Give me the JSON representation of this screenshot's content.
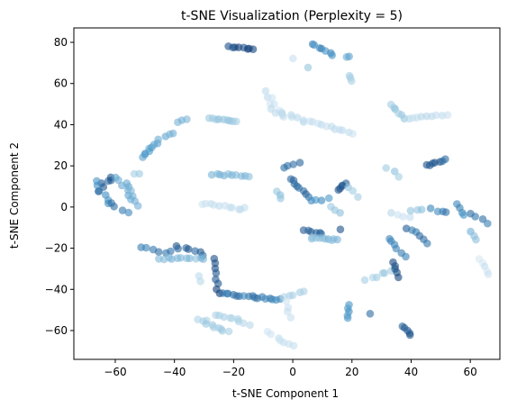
{
  "chart_data": {
    "type": "scatter",
    "title": "t-SNE Visualization (Perplexity = 5)",
    "xlabel": "t-SNE Component 1",
    "ylabel": "t-SNE Component 2",
    "xlim": [
      -74,
      70
    ],
    "ylim": [
      -74,
      87
    ],
    "xticks": [
      -60,
      -40,
      -20,
      0,
      20,
      40,
      60
    ],
    "yticks": [
      -60,
      -40,
      -20,
      0,
      20,
      40,
      60,
      80
    ],
    "grid": false,
    "legend": "none",
    "colormap": [
      "#deebf7",
      "#9ecae1",
      "#4292c6",
      "#08306b"
    ],
    "marker_alpha": 0.6,
    "clusters": [
      {
        "x0": -66,
        "y0": 8,
        "x1": -61,
        "y1": 15,
        "n": 6,
        "shade": 0.85,
        "spread": 2
      },
      {
        "x0": -67,
        "y0": 12,
        "x1": -62,
        "y1": 2,
        "n": 6,
        "shade": 0.7,
        "spread": 2
      },
      {
        "x0": -62,
        "y0": 2,
        "x1": -56,
        "y1": -3,
        "n": 4,
        "shade": 0.75,
        "spread": 1.5
      },
      {
        "x0": -60,
        "y0": 15,
        "x1": -54,
        "y1": 4,
        "n": 6,
        "shade": 0.55,
        "spread": 1.5
      },
      {
        "x0": -56,
        "y0": 12,
        "x1": -53,
        "y1": 1,
        "n": 6,
        "shade": 0.5,
        "spread": 1.5
      },
      {
        "x0": -54,
        "y0": 16,
        "x1": -52,
        "y1": 16,
        "n": 2,
        "shade": 0.35,
        "spread": 1
      },
      {
        "x0": -51,
        "y0": 24,
        "x1": -46,
        "y1": 31,
        "n": 8,
        "shade": 0.6,
        "spread": 1
      },
      {
        "x0": -45,
        "y0": 33,
        "x1": -40,
        "y1": 36,
        "n": 4,
        "shade": 0.5,
        "spread": 1
      },
      {
        "x0": -39,
        "y0": 41,
        "x1": -36,
        "y1": 43,
        "n": 3,
        "shade": 0.45,
        "spread": 1
      },
      {
        "x0": -28,
        "y0": 43,
        "x1": -19,
        "y1": 42,
        "n": 9,
        "shade": 0.35,
        "spread": 1
      },
      {
        "x0": -27,
        "y0": 16,
        "x1": -15,
        "y1": 15,
        "n": 10,
        "shade": 0.45,
        "spread": 1
      },
      {
        "x0": -31,
        "y0": 2,
        "x1": -16,
        "y1": -1,
        "n": 11,
        "shade": 0.12,
        "spread": 1.5
      },
      {
        "x0": -52,
        "y0": -20,
        "x1": -41,
        "y1": -22,
        "n": 6,
        "shade": 0.75,
        "spread": 1.5
      },
      {
        "x0": -40,
        "y0": -19,
        "x1": -30,
        "y1": -23,
        "n": 7,
        "shade": 0.85,
        "spread": 1.5
      },
      {
        "x0": -45,
        "y0": -25,
        "x1": -30,
        "y1": -25,
        "n": 11,
        "shade": 0.45,
        "spread": 1
      },
      {
        "x0": -27,
        "y0": -25,
        "x1": -25,
        "y1": -42,
        "n": 8,
        "shade": 0.9,
        "spread": 1
      },
      {
        "x0": -24,
        "y0": -42,
        "x1": -4,
        "y1": -45,
        "n": 17,
        "shade": 0.75,
        "spread": 1
      },
      {
        "x0": -3,
        "y0": -44,
        "x1": 4,
        "y1": -41,
        "n": 5,
        "shade": 0.3,
        "spread": 1
      },
      {
        "x0": -32,
        "y0": -33,
        "x1": -31,
        "y1": -36,
        "n": 2,
        "shade": 0.2,
        "spread": 1
      },
      {
        "x0": -32,
        "y0": -54,
        "x1": -22,
        "y1": -61,
        "n": 10,
        "shade": 0.3,
        "spread": 1.5
      },
      {
        "x0": -26,
        "y0": -52,
        "x1": -15,
        "y1": -57,
        "n": 9,
        "shade": 0.25,
        "spread": 1.5
      },
      {
        "x0": -8,
        "y0": -61,
        "x1": 0,
        "y1": -68,
        "n": 7,
        "shade": 0.1,
        "spread": 1.5
      },
      {
        "x0": -2,
        "y0": -46,
        "x1": -1,
        "y1": -54,
        "n": 4,
        "shade": 0.12,
        "spread": 1
      },
      {
        "x0": -22,
        "y0": 78,
        "x1": -13,
        "y1": 77,
        "n": 8,
        "shade": 0.95,
        "spread": 1
      },
      {
        "x0": 6,
        "y0": 79,
        "x1": 14,
        "y1": 74,
        "n": 7,
        "shade": 0.7,
        "spread": 1.5
      },
      {
        "x0": 18,
        "y0": 73,
        "x1": 19,
        "y1": 73,
        "n": 2,
        "shade": 0.55,
        "spread": 0.5
      },
      {
        "x0": 0,
        "y0": 72,
        "x1": 0,
        "y1": 72,
        "n": 1,
        "shade": 0.15,
        "spread": 0.5
      },
      {
        "x0": 5,
        "y0": 68,
        "x1": 5,
        "y1": 68,
        "n": 1,
        "shade": 0.35,
        "spread": 0.5
      },
      {
        "x0": 19,
        "y0": 64,
        "x1": 20,
        "y1": 61,
        "n": 3,
        "shade": 0.3,
        "spread": 0.5
      },
      {
        "x0": -10,
        "y0": 56,
        "x1": -3,
        "y1": 44,
        "n": 8,
        "shade": 0.12,
        "spread": 2
      },
      {
        "x0": -7,
        "y0": 47,
        "x1": 3,
        "y1": 42,
        "n": 8,
        "shade": 0.15,
        "spread": 1.5
      },
      {
        "x0": 4,
        "y0": 42,
        "x1": 20,
        "y1": 36,
        "n": 12,
        "shade": 0.12,
        "spread": 1
      },
      {
        "x0": -3,
        "y0": 19,
        "x1": 2,
        "y1": 22,
        "n": 4,
        "shade": 0.8,
        "spread": 1
      },
      {
        "x0": -1,
        "y0": 14,
        "x1": 5,
        "y1": 5,
        "n": 8,
        "shade": 0.8,
        "spread": 1
      },
      {
        "x0": -5,
        "y0": 8,
        "x1": -4,
        "y1": 4,
        "n": 3,
        "shade": 0.4,
        "spread": 1
      },
      {
        "x0": 6,
        "y0": 3,
        "x1": 12,
        "y1": 4,
        "n": 4,
        "shade": 0.65,
        "spread": 1
      },
      {
        "x0": 15,
        "y0": 8,
        "x1": 18,
        "y1": 12,
        "n": 5,
        "shade": 0.85,
        "spread": 1
      },
      {
        "x0": 19,
        "y0": 10,
        "x1": 22,
        "y1": 5,
        "n": 3,
        "shade": 0.35,
        "spread": 1
      },
      {
        "x0": 13,
        "y0": 0,
        "x1": 16,
        "y1": -3,
        "n": 3,
        "shade": 0.4,
        "spread": 1
      },
      {
        "x0": 4,
        "y0": -11,
        "x1": 10,
        "y1": -13,
        "n": 6,
        "shade": 0.85,
        "spread": 1
      },
      {
        "x0": 6,
        "y0": -15,
        "x1": 15,
        "y1": -16,
        "n": 10,
        "shade": 0.45,
        "spread": 1
      },
      {
        "x0": 16,
        "y0": -11,
        "x1": 16,
        "y1": -11,
        "n": 1,
        "shade": 0.85,
        "spread": 0.5
      },
      {
        "x0": 19,
        "y0": -47,
        "x1": 19,
        "y1": -54,
        "n": 5,
        "shade": 0.65,
        "spread": 1
      },
      {
        "x0": 26,
        "y0": -52,
        "x1": 26,
        "y1": -52,
        "n": 1,
        "shade": 0.8,
        "spread": 0.5
      },
      {
        "x0": 33,
        "y0": 50,
        "x1": 38,
        "y1": 43,
        "n": 6,
        "shade": 0.35,
        "spread": 1
      },
      {
        "x0": 39,
        "y0": 43,
        "x1": 52,
        "y1": 45,
        "n": 9,
        "shade": 0.15,
        "spread": 1
      },
      {
        "x0": 32,
        "y0": 19,
        "x1": 36,
        "y1": 15,
        "n": 3,
        "shade": 0.35,
        "spread": 1
      },
      {
        "x0": 45,
        "y0": 20,
        "x1": 52,
        "y1": 23,
        "n": 7,
        "shade": 0.85,
        "spread": 1
      },
      {
        "x0": 33,
        "y0": -3,
        "x1": 40,
        "y1": -5,
        "n": 4,
        "shade": 0.15,
        "spread": 1
      },
      {
        "x0": 40,
        "y0": -2,
        "x1": 44,
        "y1": -1,
        "n": 3,
        "shade": 0.4,
        "spread": 1
      },
      {
        "x0": 47,
        "y0": -1,
        "x1": 52,
        "y1": -3,
        "n": 4,
        "shade": 0.75,
        "spread": 1
      },
      {
        "x0": 55,
        "y0": 1,
        "x1": 58,
        "y1": -4,
        "n": 4,
        "shade": 0.7,
        "spread": 1
      },
      {
        "x0": 60,
        "y0": -3,
        "x1": 66,
        "y1": -8,
        "n": 4,
        "shade": 0.75,
        "spread": 1
      },
      {
        "x0": 60,
        "y0": -12,
        "x1": 62,
        "y1": -16,
        "n": 3,
        "shade": 0.45,
        "spread": 1
      },
      {
        "x0": 38,
        "y0": -10,
        "x1": 46,
        "y1": -17,
        "n": 6,
        "shade": 0.8,
        "spread": 1.5
      },
      {
        "x0": 32,
        "y0": -15,
        "x1": 38,
        "y1": -24,
        "n": 6,
        "shade": 0.7,
        "spread": 1.5
      },
      {
        "x0": 25,
        "y0": -35,
        "x1": 33,
        "y1": -31,
        "n": 6,
        "shade": 0.3,
        "spread": 1.5
      },
      {
        "x0": 34,
        "y0": -27,
        "x1": 36,
        "y1": -34,
        "n": 5,
        "shade": 0.9,
        "spread": 1
      },
      {
        "x0": 37,
        "y0": -58,
        "x1": 40,
        "y1": -62,
        "n": 5,
        "shade": 0.85,
        "spread": 1
      },
      {
        "x0": 63,
        "y0": -25,
        "x1": 66,
        "y1": -33,
        "n": 5,
        "shade": 0.1,
        "spread": 1
      }
    ]
  }
}
